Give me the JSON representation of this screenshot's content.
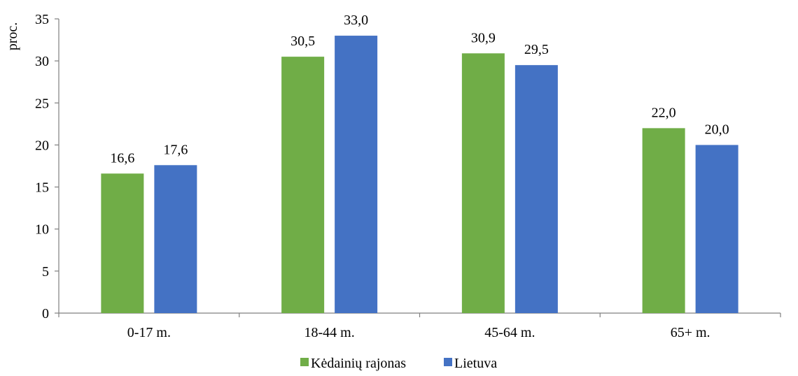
{
  "chart_data": {
    "type": "bar",
    "title": "",
    "xlabel": "",
    "ylabel": "proc.",
    "ylim": [
      0,
      35
    ],
    "yticks": [
      0,
      5,
      10,
      15,
      20,
      25,
      30,
      35
    ],
    "grid": false,
    "legend_position": "bottom-center",
    "categories": [
      "0-17 m.",
      "18-44 m.",
      "45-64 m.",
      "65+ m."
    ],
    "series": [
      {
        "name": "Kėdainių rajonas",
        "color": "#70ad47",
        "values": [
          16.6,
          30.5,
          30.9,
          22.0
        ],
        "labels": [
          "16,6",
          "30,5",
          "30,9",
          "22,0"
        ]
      },
      {
        "name": "Lietuva",
        "color": "#4472c4",
        "values": [
          17.6,
          33.0,
          29.5,
          20.0
        ],
        "labels": [
          "17,6",
          "33,0",
          "29,5",
          "20,0"
        ]
      }
    ]
  }
}
